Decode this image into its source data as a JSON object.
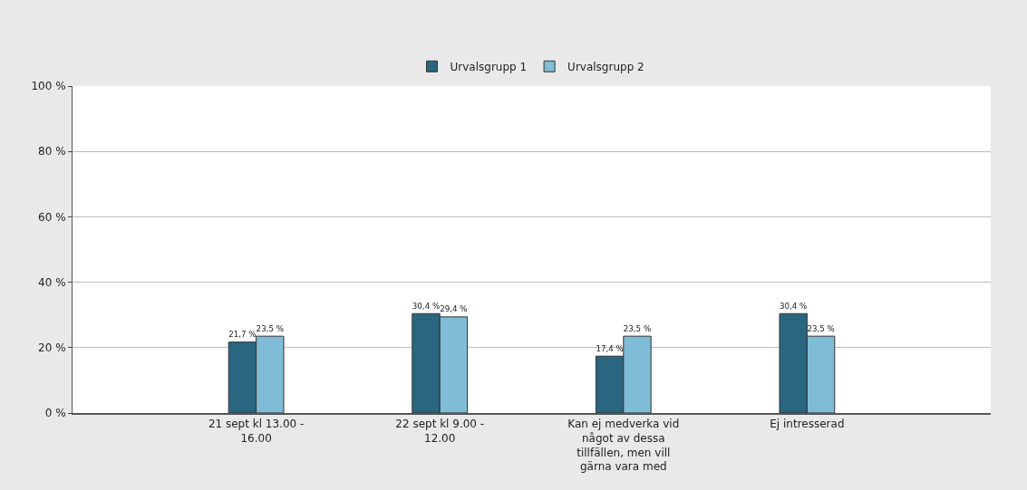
{
  "chart_data": {
    "type": "bar",
    "categories": [
      "21 sept kl 13.00 - 16.00",
      "22 sept kl 9.00 - 12.00",
      "Kan ej medverka vid något av dessa tillfällen, men vill gärna vara med",
      "Ej intresserad"
    ],
    "series": [
      {
        "name": "Urvalsgrupp 1",
        "color": "#2a6680",
        "values": [
          21.7,
          30.4,
          17.4,
          30.4
        ],
        "value_labels": [
          "21,7 %",
          "30,4 %",
          "17,4 %",
          "30,4 %"
        ]
      },
      {
        "name": "Urvalsgrupp 2",
        "color": "#7fbcd6",
        "values": [
          23.5,
          29.4,
          23.5,
          23.5
        ],
        "value_labels": [
          "23,5 %",
          "29,4 %",
          "23,5 %",
          "23,5 %"
        ]
      }
    ],
    "ylim": [
      0,
      100
    ],
    "yticks": [
      {
        "value": 0,
        "label": "0 %"
      },
      {
        "value": 20,
        "label": "20 %"
      },
      {
        "value": 40,
        "label": "40 %"
      },
      {
        "value": 60,
        "label": "60 %"
      },
      {
        "value": 80,
        "label": "80 %"
      },
      {
        "value": 100,
        "label": "100 %"
      }
    ],
    "grid": "y",
    "legend": "top"
  }
}
